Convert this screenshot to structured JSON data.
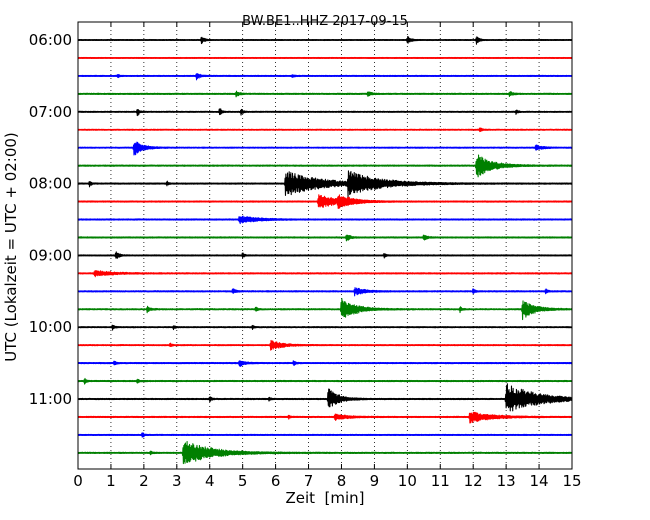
{
  "chart_data": {
    "type": "line",
    "title": "BW.BE1..HHZ 2017-09-15",
    "xlabel": "Zeit  [min]",
    "ylabel": "UTC (Lokalzeit = UTC + 02:00)",
    "xlim": [
      0,
      15
    ],
    "x_ticks": [
      "0",
      "1",
      "2",
      "3",
      "4",
      "5",
      "6",
      "7",
      "8",
      "9",
      "10",
      "11",
      "12",
      "13",
      "14",
      "15"
    ],
    "grid": "vertical dotted",
    "trace_minutes": 15,
    "hour_labels": [
      {
        "label": "06:00",
        "row": 0
      },
      {
        "label": "07:00",
        "row": 4
      },
      {
        "label": "08:00",
        "row": 8
      },
      {
        "label": "09:00",
        "row": 12
      },
      {
        "label": "10:00",
        "row": 16
      },
      {
        "label": "11:00",
        "row": 20
      }
    ],
    "colors": [
      "#000000",
      "#ff0000",
      "#0000ff",
      "#008000"
    ],
    "series": [
      {
        "start": "06:00",
        "color": "#000000",
        "noise": 0.35,
        "events": [
          {
            "t": 3.75,
            "amp": 4,
            "dur": 0.08
          },
          {
            "t": 10.0,
            "amp": 4,
            "dur": 0.1
          },
          {
            "t": 12.1,
            "amp": 4,
            "dur": 0.08
          }
        ]
      },
      {
        "start": "06:15",
        "color": "#ff0000",
        "noise": 0.35,
        "events": []
      },
      {
        "start": "06:30",
        "color": "#0000ff",
        "noise": 0.4,
        "events": [
          {
            "t": 1.2,
            "amp": 2,
            "dur": 0.05
          },
          {
            "t": 3.6,
            "amp": 3.5,
            "dur": 0.1
          },
          {
            "t": 6.5,
            "amp": 1.5,
            "dur": 0.08
          }
        ]
      },
      {
        "start": "06:45",
        "color": "#008000",
        "noise": 0.45,
        "events": [
          {
            "t": 4.8,
            "amp": 2.5,
            "dur": 0.1
          },
          {
            "t": 8.8,
            "amp": 2.5,
            "dur": 0.1
          },
          {
            "t": 13.1,
            "amp": 2.5,
            "dur": 0.1
          }
        ]
      },
      {
        "start": "07:00",
        "color": "#000000",
        "noise": 0.4,
        "events": [
          {
            "t": 1.8,
            "amp": 5,
            "dur": 0.05
          },
          {
            "t": 4.3,
            "amp": 5,
            "dur": 0.05
          },
          {
            "t": 4.95,
            "amp": 4,
            "dur": 0.05
          },
          {
            "t": 13.3,
            "amp": 3,
            "dur": 0.05
          }
        ]
      },
      {
        "start": "07:15",
        "color": "#ff0000",
        "noise": 0.4,
        "events": [
          {
            "t": 12.2,
            "amp": 3,
            "dur": 0.05
          }
        ]
      },
      {
        "start": "07:30",
        "color": "#0000ff",
        "noise": 0.4,
        "events": [
          {
            "t": 1.7,
            "amp": 8,
            "dur": 0.25
          },
          {
            "t": 13.9,
            "amp": 2.5,
            "dur": 0.2
          }
        ]
      },
      {
        "start": "07:45",
        "color": "#008000",
        "noise": 0.45,
        "events": [
          {
            "t": 12.1,
            "amp": 12,
            "dur": 0.45
          }
        ]
      },
      {
        "start": "08:00",
        "color": "#000000",
        "noise": 0.45,
        "events": [
          {
            "t": 0.35,
            "amp": 3,
            "dur": 0.05
          },
          {
            "t": 2.7,
            "amp": 2.5,
            "dur": 0.05
          },
          {
            "t": 6.3,
            "amp": 13,
            "dur": 1.0
          },
          {
            "t": 8.2,
            "amp": 12,
            "dur": 0.9
          }
        ]
      },
      {
        "start": "08:15",
        "color": "#ff0000",
        "noise": 0.45,
        "events": [
          {
            "t": 7.3,
            "amp": 8,
            "dur": 0.5
          },
          {
            "t": 7.9,
            "amp": 6,
            "dur": 0.4
          }
        ]
      },
      {
        "start": "08:30",
        "color": "#0000ff",
        "noise": 0.45,
        "events": [
          {
            "t": 4.9,
            "amp": 4,
            "dur": 0.5
          }
        ]
      },
      {
        "start": "08:45",
        "color": "#008000",
        "noise": 0.45,
        "events": [
          {
            "t": 8.15,
            "amp": 4,
            "dur": 0.1
          },
          {
            "t": 10.5,
            "amp": 3,
            "dur": 0.1
          }
        ]
      },
      {
        "start": "09:00",
        "color": "#000000",
        "noise": 0.4,
        "events": [
          {
            "t": 1.15,
            "amp": 5,
            "dur": 0.08
          },
          {
            "t": 5.0,
            "amp": 3,
            "dur": 0.05
          },
          {
            "t": 9.3,
            "amp": 2.5,
            "dur": 0.05
          }
        ]
      },
      {
        "start": "09:15",
        "color": "#ff0000",
        "noise": 0.45,
        "events": [
          {
            "t": 0.5,
            "amp": 3,
            "dur": 0.5
          }
        ]
      },
      {
        "start": "09:30",
        "color": "#0000ff",
        "noise": 0.45,
        "events": [
          {
            "t": 4.7,
            "amp": 3,
            "dur": 0.08
          },
          {
            "t": 8.4,
            "amp": 4,
            "dur": 0.3
          },
          {
            "t": 12.0,
            "amp": 3,
            "dur": 0.05
          },
          {
            "t": 14.2,
            "amp": 2.5,
            "dur": 0.05
          }
        ]
      },
      {
        "start": "09:45",
        "color": "#008000",
        "noise": 0.45,
        "events": [
          {
            "t": 2.1,
            "amp": 3,
            "dur": 0.1
          },
          {
            "t": 5.4,
            "amp": 2.5,
            "dur": 0.05
          },
          {
            "t": 8.0,
            "amp": 12,
            "dur": 0.4
          },
          {
            "t": 11.6,
            "amp": 3,
            "dur": 0.05
          },
          {
            "t": 13.5,
            "amp": 10,
            "dur": 0.35
          }
        ]
      },
      {
        "start": "10:00",
        "color": "#000000",
        "noise": 0.4,
        "events": [
          {
            "t": 1.05,
            "amp": 3,
            "dur": 0.05
          },
          {
            "t": 2.9,
            "amp": 2,
            "dur": 0.05
          },
          {
            "t": 5.3,
            "amp": 2,
            "dur": 0.05
          }
        ]
      },
      {
        "start": "10:15",
        "color": "#ff0000",
        "noise": 0.4,
        "events": [
          {
            "t": 2.8,
            "amp": 2,
            "dur": 0.05
          },
          {
            "t": 5.85,
            "amp": 5,
            "dur": 0.35
          }
        ]
      },
      {
        "start": "10:30",
        "color": "#0000ff",
        "noise": 0.45,
        "events": [
          {
            "t": 1.1,
            "amp": 2.5,
            "dur": 0.05
          },
          {
            "t": 4.9,
            "amp": 3.5,
            "dur": 0.15
          },
          {
            "t": 6.55,
            "amp": 3,
            "dur": 0.05
          }
        ]
      },
      {
        "start": "10:45",
        "color": "#008000",
        "noise": 0.45,
        "events": [
          {
            "t": 0.2,
            "amp": 3,
            "dur": 0.05
          },
          {
            "t": 1.8,
            "amp": 2.5,
            "dur": 0.05
          }
        ]
      },
      {
        "start": "11:00",
        "color": "#000000",
        "noise": 0.45,
        "events": [
          {
            "t": 4.0,
            "amp": 3,
            "dur": 0.05
          },
          {
            "t": 5.8,
            "amp": 2,
            "dur": 0.05
          },
          {
            "t": 7.6,
            "amp": 11,
            "dur": 0.3
          },
          {
            "t": 13.0,
            "amp": 16,
            "dur": 0.9
          }
        ]
      },
      {
        "start": "11:15",
        "color": "#ff0000",
        "noise": 0.45,
        "events": [
          {
            "t": 6.4,
            "amp": 2,
            "dur": 0.05
          },
          {
            "t": 7.8,
            "amp": 3.5,
            "dur": 0.35
          },
          {
            "t": 11.9,
            "amp": 6,
            "dur": 0.6
          }
        ]
      },
      {
        "start": "11:30",
        "color": "#0000ff",
        "noise": 0.4,
        "events": [
          {
            "t": 1.95,
            "amp": 3.5,
            "dur": 0.05
          }
        ]
      },
      {
        "start": "11:45",
        "color": "#008000",
        "noise": 0.45,
        "events": [
          {
            "t": 3.2,
            "amp": 13,
            "dur": 0.8
          },
          {
            "t": 2.2,
            "amp": 2,
            "dur": 0.05
          }
        ]
      }
    ]
  }
}
